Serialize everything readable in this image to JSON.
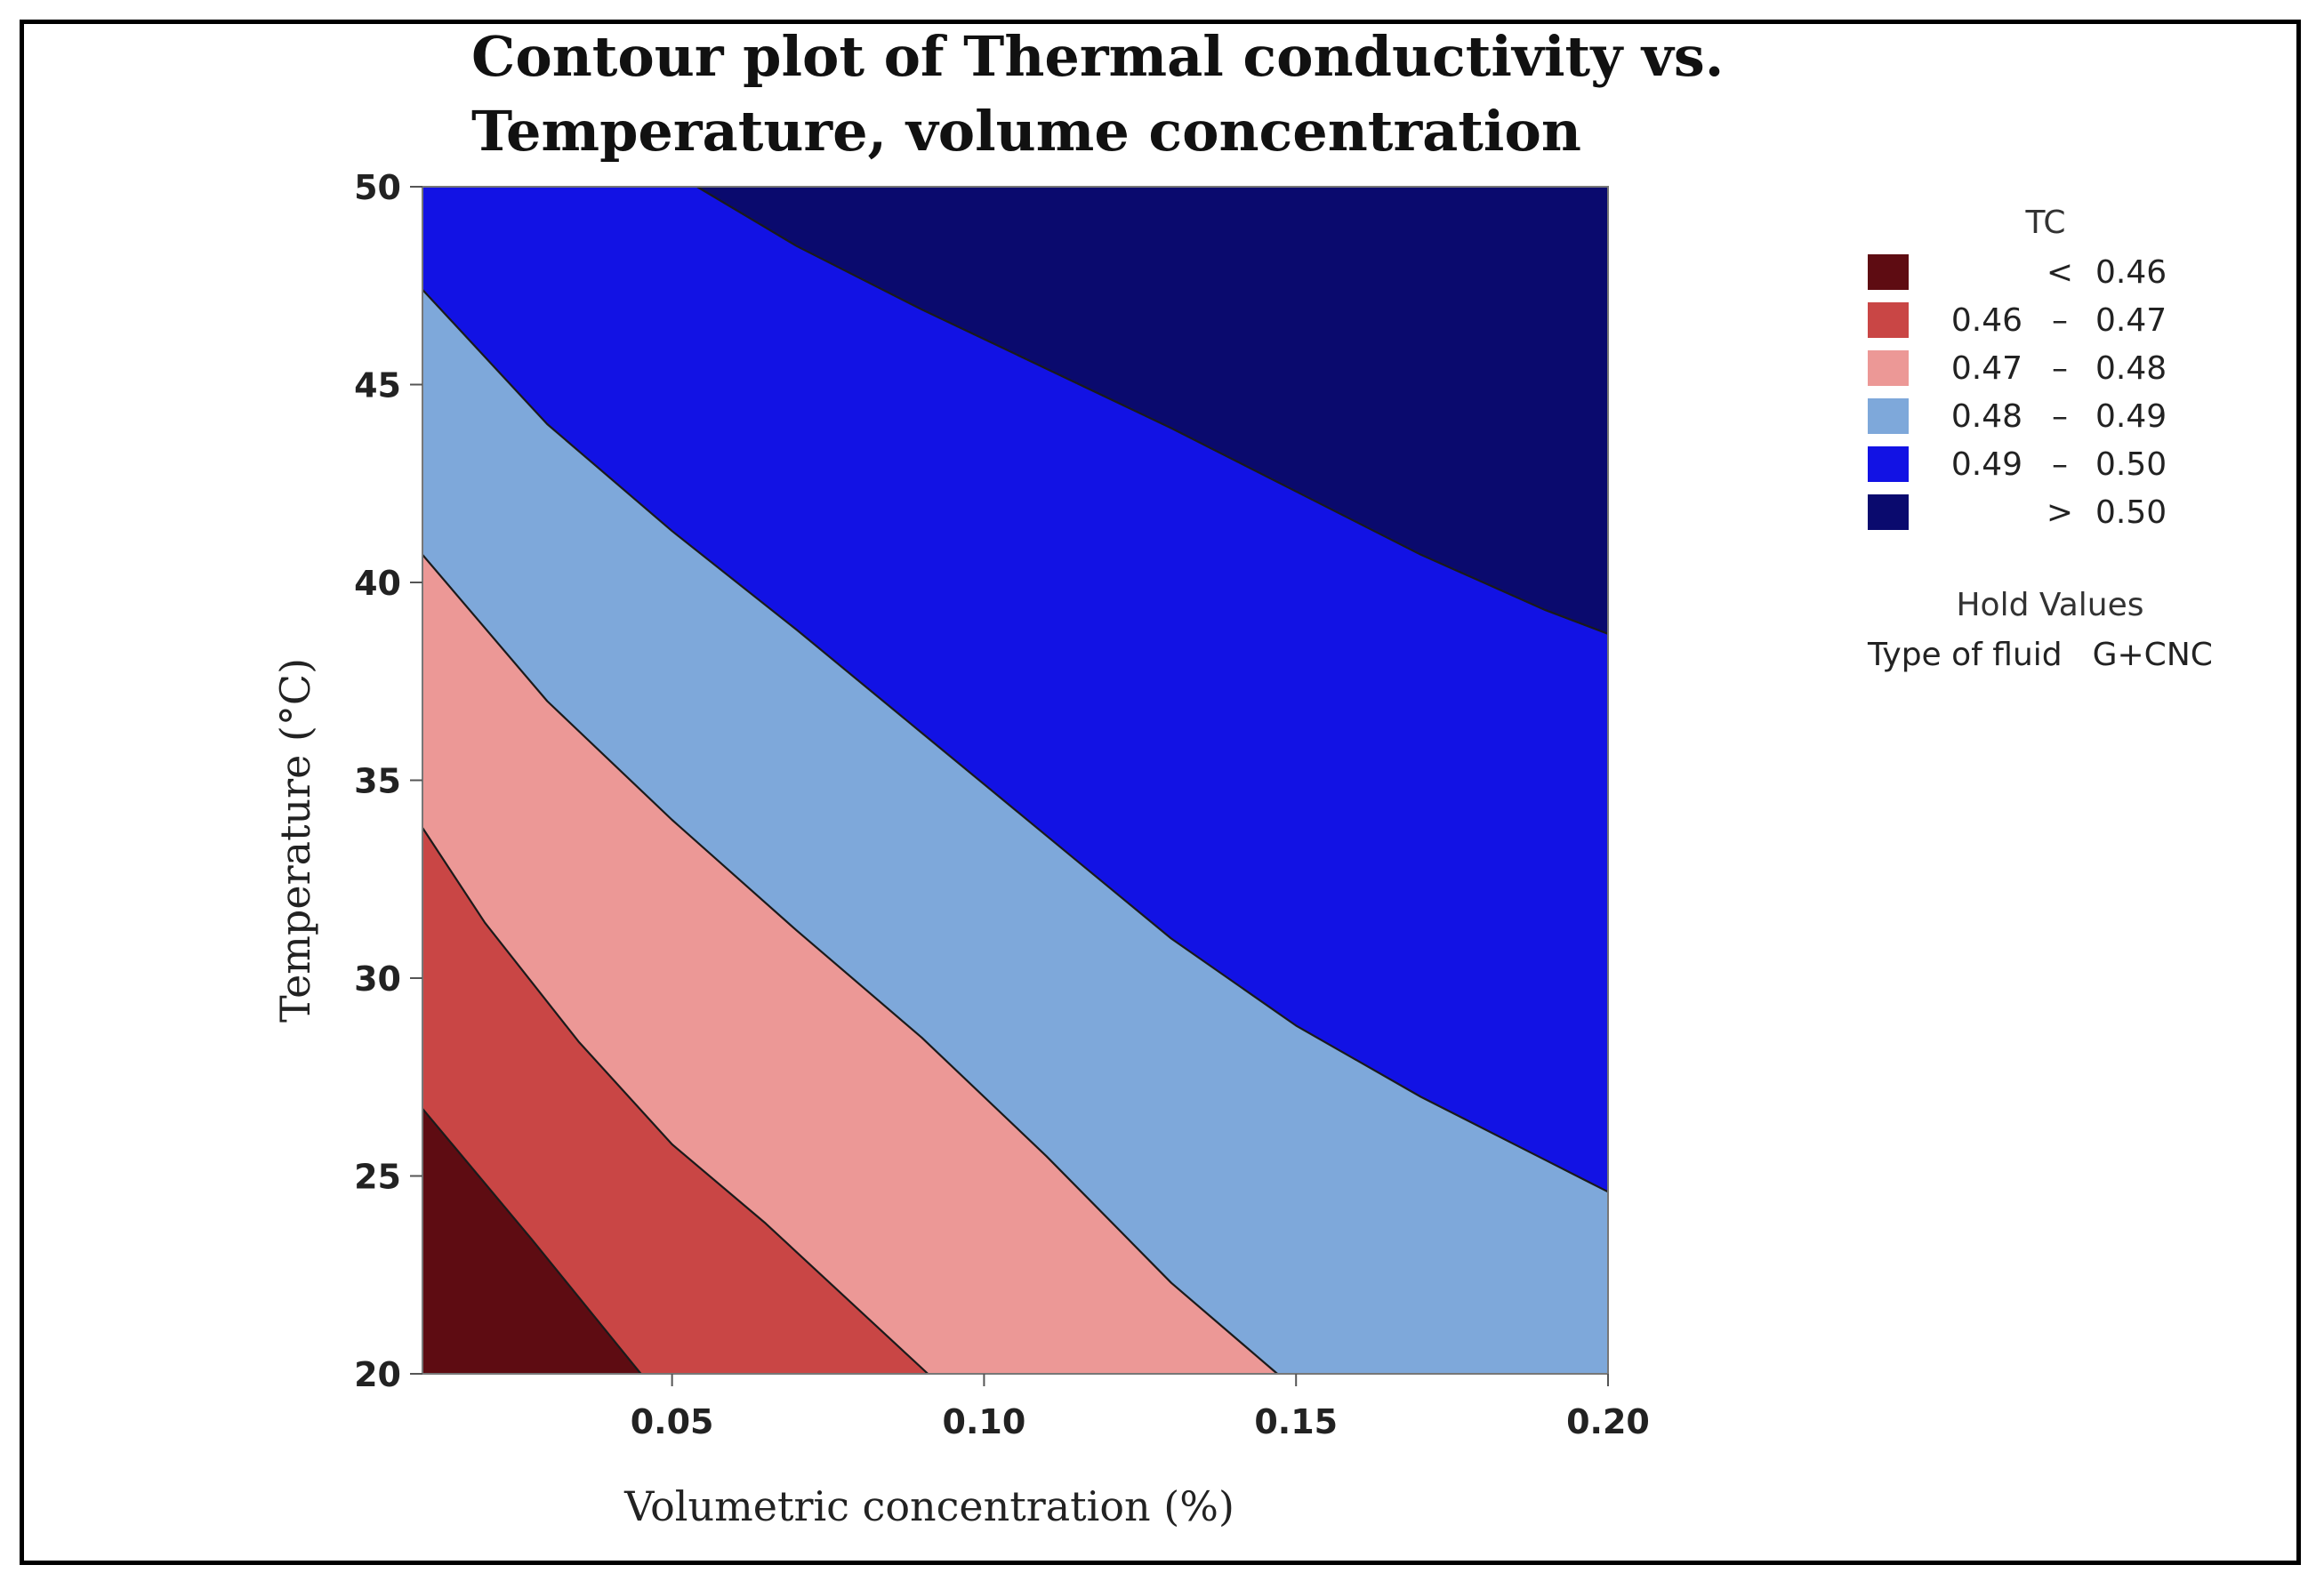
{
  "chart_data": {
    "type": "contour",
    "title_lines": [
      "Contour plot of Thermal conductivity vs.",
      "Temperature, volume concentration"
    ],
    "xlabel": "Volumetric concentration (%)",
    "ylabel": "Temperature (°C)",
    "xlim": [
      0.01,
      0.2
    ],
    "ylim": [
      20,
      50
    ],
    "x_ticks": [
      "0.05",
      "0.10",
      "0.15",
      "0.20"
    ],
    "x_tick_values": [
      0.05,
      0.1,
      0.15,
      0.2
    ],
    "y_ticks": [
      "20",
      "25",
      "30",
      "35",
      "40",
      "45",
      "50"
    ],
    "y_tick_values": [
      20,
      25,
      30,
      35,
      40,
      45,
      50
    ],
    "legend_title": "TC",
    "levels": [
      {
        "lo": "",
        "sym": "<",
        "hi": "0.46",
        "color": "#5e0c12"
      },
      {
        "lo": "0.46",
        "sym": "–",
        "hi": "0.47",
        "color": "#c94645"
      },
      {
        "lo": "0.47",
        "sym": "–",
        "hi": "0.48",
        "color": "#ec9896"
      },
      {
        "lo": "0.48",
        "sym": "–",
        "hi": "0.49",
        "color": "#7ea8da"
      },
      {
        "lo": "0.49",
        "sym": "–",
        "hi": "0.50",
        "color": "#1212e4"
      },
      {
        "lo": "",
        "sym": ">",
        "hi": "0.50",
        "color": "#0a0a6e"
      }
    ],
    "contour_lines": [
      {
        "level": 0.46,
        "points": [
          [
            0.01,
            26.7
          ],
          [
            0.0275,
            23.4
          ],
          [
            0.045,
            20
          ]
        ]
      },
      {
        "level": 0.47,
        "points": [
          [
            0.01,
            33.8
          ],
          [
            0.02,
            31.4
          ],
          [
            0.035,
            28.4
          ],
          [
            0.05,
            25.8
          ],
          [
            0.065,
            23.8
          ],
          [
            0.091,
            20
          ]
        ]
      },
      {
        "level": 0.48,
        "points": [
          [
            0.01,
            40.7
          ],
          [
            0.03,
            37.0
          ],
          [
            0.05,
            34.0
          ],
          [
            0.07,
            31.2
          ],
          [
            0.09,
            28.5
          ],
          [
            0.11,
            25.5
          ],
          [
            0.13,
            22.3
          ],
          [
            0.147,
            20
          ]
        ]
      },
      {
        "level": 0.49,
        "points": [
          [
            0.01,
            47.4
          ],
          [
            0.03,
            44.0
          ],
          [
            0.05,
            41.3
          ],
          [
            0.07,
            38.8
          ],
          [
            0.09,
            36.2
          ],
          [
            0.11,
            33.6
          ],
          [
            0.13,
            31.0
          ],
          [
            0.15,
            28.8
          ],
          [
            0.17,
            27.0
          ],
          [
            0.19,
            25.4
          ],
          [
            0.2,
            24.6
          ]
        ]
      },
      {
        "level": 0.5,
        "points": [
          [
            0.054,
            50
          ],
          [
            0.07,
            48.5
          ],
          [
            0.09,
            46.9
          ],
          [
            0.11,
            45.4
          ],
          [
            0.13,
            43.9
          ],
          [
            0.15,
            42.3
          ],
          [
            0.17,
            40.7
          ],
          [
            0.19,
            39.3
          ],
          [
            0.2,
            38.7
          ]
        ]
      }
    ],
    "hold_values": {
      "title": "Hold Values",
      "label": "Type of fluid",
      "value": "G+CNC"
    }
  }
}
